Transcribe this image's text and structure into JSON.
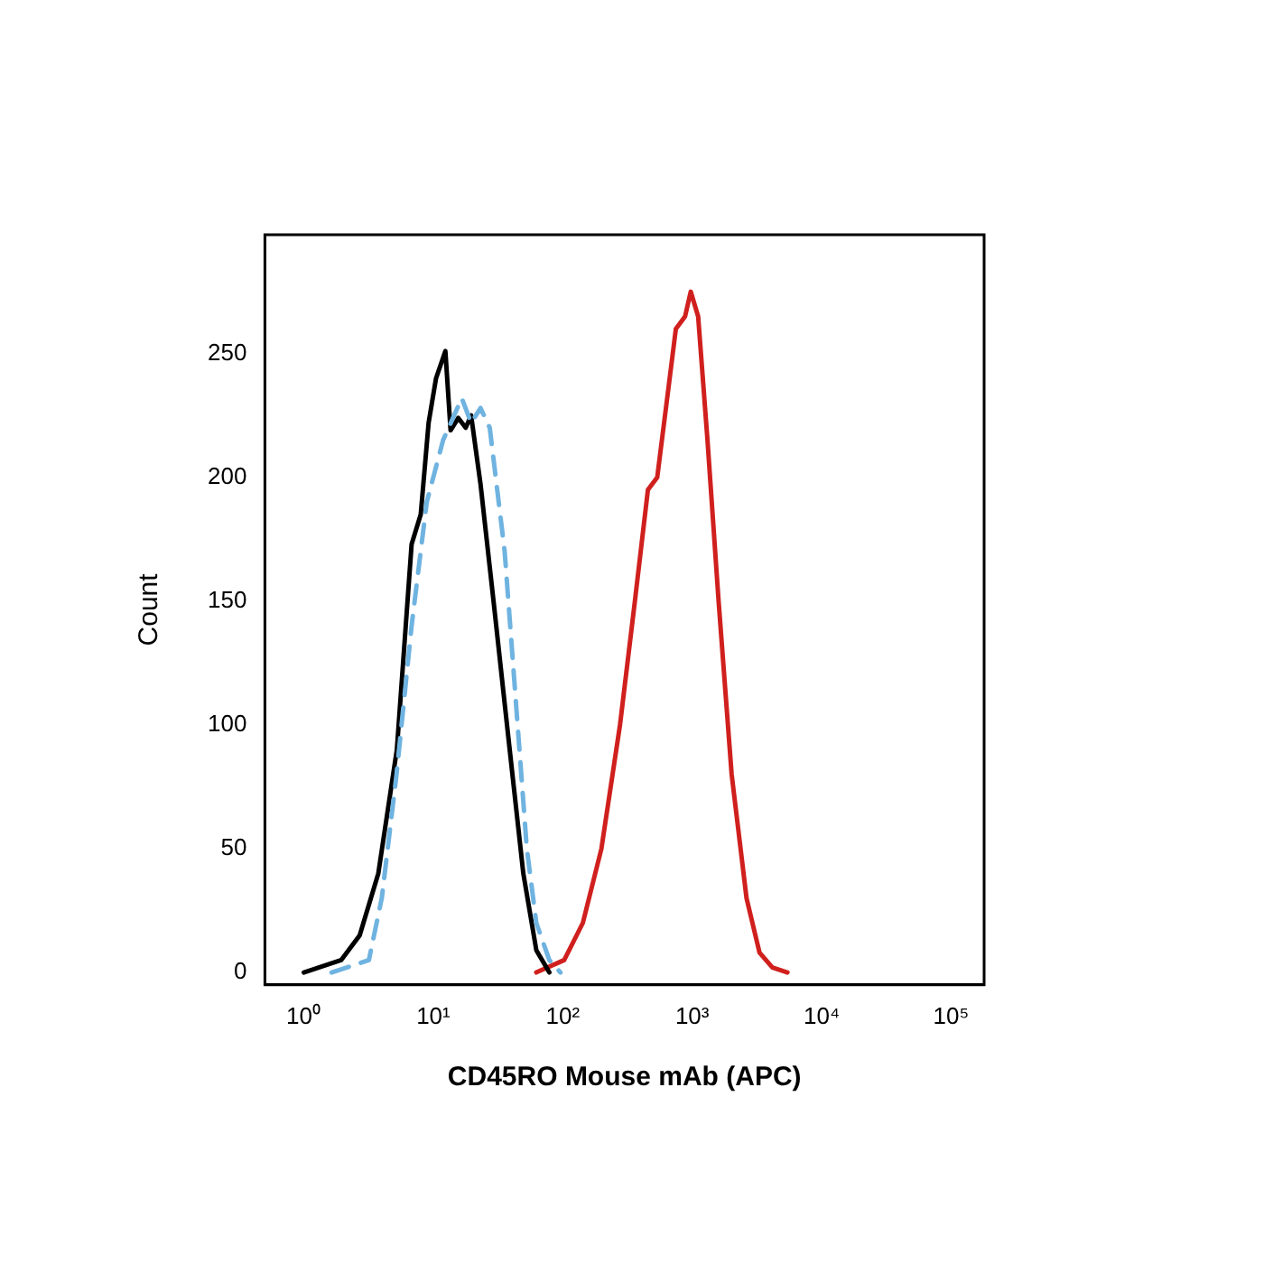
{
  "chart_data": {
    "type": "line",
    "xlabel": "CD45RO Mouse mAb (APC)",
    "ylabel": "Count",
    "log": "x",
    "xlim": [
      0.5,
      180000
    ],
    "xticks": [
      {
        "value": 1,
        "label": "10⁰"
      },
      {
        "value": 10,
        "label": "10¹"
      },
      {
        "value": 100,
        "label": "10²"
      },
      {
        "value": 1000,
        "label": "10³"
      },
      {
        "value": 10000,
        "label": "10⁴"
      },
      {
        "value": 100000,
        "label": "10⁵"
      }
    ],
    "ylim": [
      -5,
      298
    ],
    "yticks": [
      0,
      50,
      100,
      150,
      200,
      250
    ],
    "grid": false,
    "legend": false,
    "marker": "none",
    "series": [
      {
        "color": "#6fb3e0",
        "line_style": "dashed",
        "x": [
          1.64,
          3.18,
          4.0,
          5.2,
          6.8,
          8.9,
          11.9,
          16.6,
          19.6,
          23.2,
          27.3,
          35.6,
          44.8,
          52.8,
          62.5,
          78.8,
          96
        ],
        "values": [
          0,
          5,
          30,
          80,
          140,
          190,
          215,
          232,
          222,
          228,
          220,
          170,
          100,
          50,
          20,
          5,
          0
        ]
      },
      {
        "color": "#000000",
        "line_style": "solid",
        "x": [
          1,
          1.94,
          2.7,
          3.76,
          5.23,
          6.8,
          8.0,
          9.2,
          10.5,
          12.4,
          13.6,
          15.6,
          17.8,
          19.6,
          23.2,
          29.2,
          38,
          49.6,
          62.5,
          78.8
        ],
        "values": [
          0,
          5,
          15,
          40,
          90,
          173,
          185,
          222,
          240,
          251,
          219,
          224,
          220,
          225,
          197,
          150,
          95,
          40,
          9,
          0
        ]
      },
      {
        "color": "#d0201e",
        "line_style": "solid",
        "x": [
          62.5,
          102.6,
          143,
          199,
          277,
          361,
          455,
          537,
          634,
          748,
          881,
          975,
          1112,
          1313,
          1600,
          2018,
          2630,
          3313,
          4170,
          5445
        ],
        "values": [
          0,
          5,
          20,
          50,
          100,
          150,
          195,
          200,
          230,
          260,
          265,
          275,
          265,
          215,
          150,
          80,
          30,
          8,
          2,
          0
        ]
      }
    ]
  }
}
